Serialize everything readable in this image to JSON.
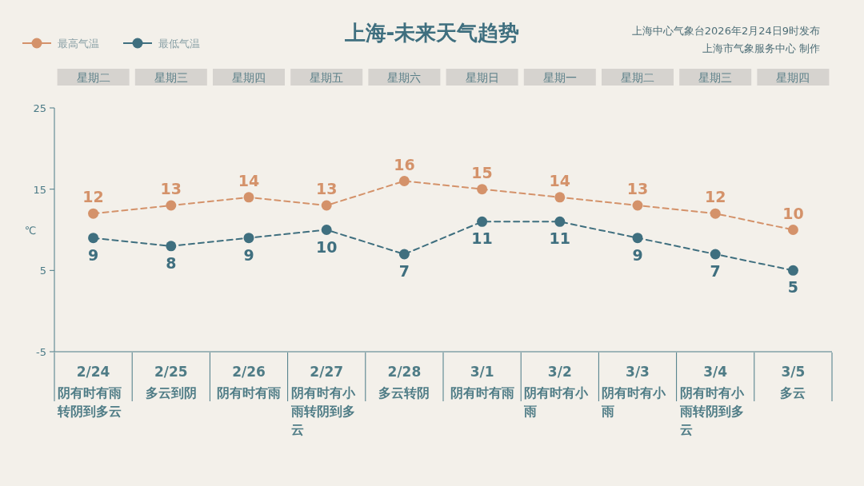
{
  "chart_data": {
    "type": "line",
    "title": "上海-未来天气趋势",
    "ylabel": "℃",
    "categories": [
      "2/24",
      "2/25",
      "2/26",
      "2/27",
      "2/28",
      "3/1",
      "3/2",
      "3/3",
      "3/4",
      "3/5"
    ],
    "series": [
      {
        "name": "最高气温",
        "color": "#d4926a",
        "values": [
          12,
          13,
          14,
          13,
          16,
          15,
          14,
          13,
          12,
          10
        ]
      },
      {
        "name": "最低气温",
        "color": "#3f6f7f",
        "values": [
          9,
          8,
          9,
          10,
          7,
          11,
          11,
          9,
          7,
          5
        ]
      }
    ],
    "ylim": [
      -5,
      25
    ],
    "yticks": [
      -5,
      5,
      15,
      25
    ],
    "data_labels": true,
    "marker": "circle",
    "line_style": "dashed",
    "legend": "top left",
    "grid": false,
    "annotations": [
      "上海中心气象台2026年2月24日9时发布",
      "上海市气象服务中心 制作",
      "星期二",
      "星期三",
      "星期四",
      "星期五",
      "星期六",
      "星期日",
      "星期一",
      "星期二",
      "星期三",
      "星期四",
      "阴有时有雨转阴到多云",
      "多云到阴",
      "阴有时有雨",
      "阴有时有小雨转阴到多云",
      "多云转阴",
      "阴有时有雨",
      "阴有时有小雨",
      "阴有时有小雨",
      "阴有时有小雨转阴到多云",
      "多云"
    ]
  }
}
